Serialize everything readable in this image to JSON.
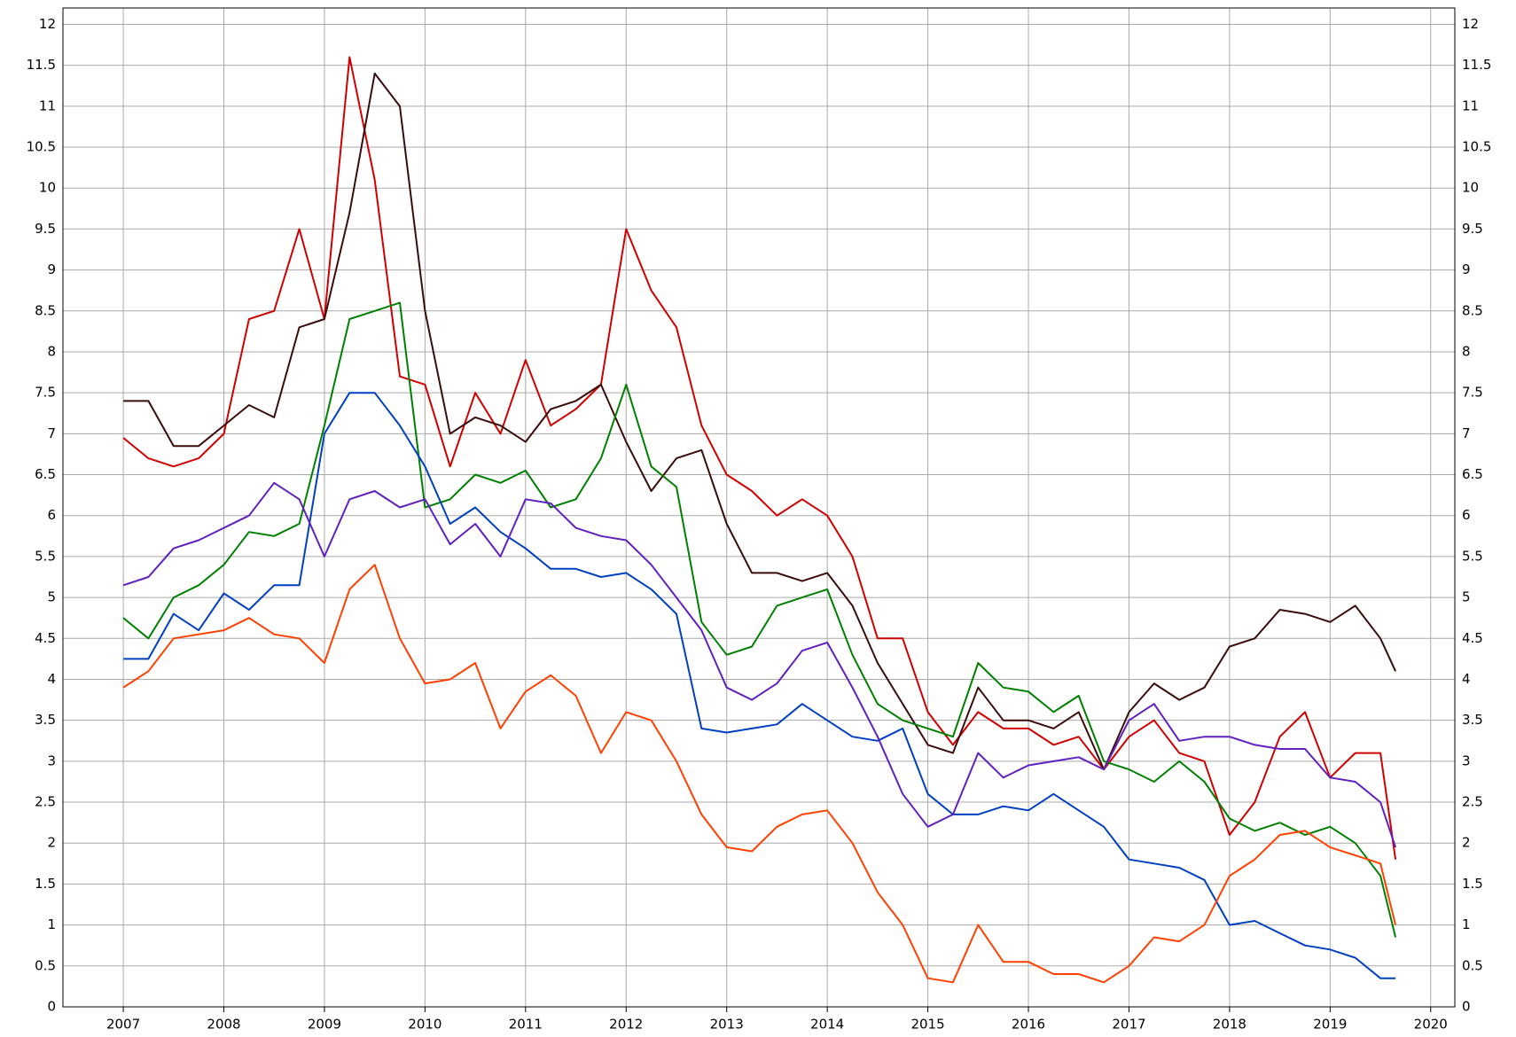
{
  "chart_data": {
    "type": "line",
    "x": [
      2007,
      2007.25,
      2007.5,
      2007.75,
      2008,
      2008.25,
      2008.5,
      2008.75,
      2009,
      2009.25,
      2009.5,
      2009.75,
      2010,
      2010.25,
      2010.5,
      2010.75,
      2011,
      2011.25,
      2011.5,
      2011.75,
      2012,
      2012.25,
      2012.5,
      2012.75,
      2013,
      2013.25,
      2013.5,
      2013.75,
      2014,
      2014.25,
      2014.5,
      2014.75,
      2015,
      2015.25,
      2015.5,
      2015.75,
      2016,
      2016.25,
      2016.5,
      2016.75,
      2017,
      2017.25,
      2017.5,
      2017.75,
      2018,
      2018.25,
      2018.5,
      2018.75,
      2019,
      2019.25,
      2019.5,
      2019.65
    ],
    "series": [
      {
        "color": "#d00000",
        "values": [
          6.95,
          6.7,
          6.6,
          6.7,
          7.0,
          8.4,
          8.5,
          9.5,
          8.4,
          11.6,
          10.1,
          7.7,
          7.6,
          6.6,
          7.5,
          7.0,
          7.9,
          7.1,
          7.3,
          7.6,
          9.5,
          8.75,
          8.3,
          7.1,
          6.5,
          6.3,
          6.0,
          6.2,
          6.0,
          5.5,
          4.5,
          4.5,
          3.6,
          3.2,
          3.6,
          3.4,
          3.4,
          3.2,
          3.3,
          2.9,
          3.3,
          3.5,
          3.1,
          3.0,
          2.1,
          2.5,
          3.3,
          3.6,
          2.8,
          3.1,
          3.1,
          1.8
        ]
      },
      {
        "color": "#3a0c0c",
        "values": [
          7.4,
          7.4,
          6.85,
          6.85,
          7.1,
          7.35,
          7.2,
          8.3,
          8.4,
          9.7,
          11.4,
          11.0,
          8.5,
          7.0,
          7.2,
          7.1,
          6.9,
          7.3,
          7.4,
          7.6,
          6.9,
          6.3,
          6.7,
          6.8,
          5.9,
          5.3,
          5.3,
          5.2,
          5.3,
          4.9,
          4.2,
          3.7,
          3.2,
          3.1,
          3.9,
          3.5,
          3.5,
          3.4,
          3.6,
          2.9,
          3.6,
          3.95,
          3.75,
          3.9,
          4.4,
          4.5,
          4.85,
          4.8,
          4.7,
          4.9,
          4.5,
          4.1
        ]
      },
      {
        "color": "#008000",
        "values": [
          4.75,
          4.5,
          5.0,
          5.15,
          5.4,
          5.8,
          5.75,
          5.9,
          7.1,
          8.4,
          8.5,
          8.6,
          6.1,
          6.2,
          6.5,
          6.4,
          6.55,
          6.1,
          6.2,
          6.7,
          7.6,
          6.6,
          6.35,
          4.7,
          4.3,
          4.4,
          4.9,
          5.0,
          5.1,
          4.3,
          3.7,
          3.5,
          3.4,
          3.3,
          4.2,
          3.9,
          3.85,
          3.6,
          3.8,
          3.0,
          2.9,
          2.75,
          3.0,
          2.75,
          2.3,
          2.15,
          2.25,
          2.1,
          2.2,
          2.0,
          1.6,
          0.85
        ]
      },
      {
        "color": "#0040c0",
        "values": [
          4.25,
          4.25,
          4.8,
          4.6,
          5.05,
          4.85,
          5.15,
          5.15,
          7.0,
          7.5,
          7.5,
          7.1,
          6.6,
          5.9,
          6.1,
          5.8,
          5.6,
          5.35,
          5.35,
          5.25,
          5.3,
          5.1,
          4.8,
          3.4,
          3.35,
          3.4,
          3.45,
          3.7,
          3.5,
          3.3,
          3.25,
          3.4,
          2.6,
          2.35,
          2.35,
          2.45,
          2.4,
          2.6,
          2.4,
          2.2,
          1.8,
          1.75,
          1.7,
          1.55,
          1.0,
          1.05,
          0.9,
          0.75,
          0.7,
          0.6,
          0.35,
          0.35
        ]
      },
      {
        "color": "#6020c0",
        "values": [
          5.15,
          5.25,
          5.6,
          5.7,
          5.85,
          6.0,
          6.4,
          6.2,
          5.5,
          6.2,
          6.3,
          6.1,
          6.2,
          5.65,
          5.9,
          5.5,
          6.2,
          6.15,
          5.85,
          5.75,
          5.7,
          5.4,
          5.0,
          4.6,
          3.9,
          3.75,
          3.95,
          4.35,
          4.45,
          3.9,
          3.3,
          2.6,
          2.2,
          2.35,
          3.1,
          2.8,
          2.95,
          3.0,
          3.05,
          2.9,
          3.5,
          3.7,
          3.25,
          3.3,
          3.3,
          3.2,
          3.15,
          3.15,
          2.8,
          2.75,
          2.5,
          1.95
        ]
      },
      {
        "color": "#ff4000",
        "values": [
          3.9,
          4.1,
          4.5,
          4.55,
          4.6,
          4.75,
          4.55,
          4.5,
          4.2,
          5.1,
          5.4,
          4.5,
          3.95,
          4.0,
          4.2,
          3.4,
          3.85,
          4.05,
          3.8,
          3.1,
          3.6,
          3.5,
          3.0,
          2.35,
          1.95,
          1.9,
          2.2,
          2.35,
          2.4,
          2.0,
          1.4,
          1.0,
          0.35,
          0.3,
          1.0,
          0.55,
          0.55,
          0.4,
          0.4,
          0.3,
          0.5,
          0.85,
          0.8,
          1.0,
          1.6,
          1.8,
          2.1,
          2.15,
          1.95,
          1.85,
          1.75,
          1.0
        ]
      }
    ],
    "xlim": [
      2006.4,
      2020.24
    ],
    "xticks": [
      2007,
      2008,
      2009,
      2010,
      2011,
      2012,
      2013,
      2014,
      2015,
      2016,
      2017,
      2018,
      2019,
      2020
    ],
    "ylim": [
      0,
      12.2
    ],
    "yticks": [
      0,
      0.5,
      1,
      1.5,
      2,
      2.5,
      3,
      3.5,
      4,
      4.5,
      5,
      5.5,
      6,
      6.5,
      7,
      7.5,
      8,
      8.5,
      9,
      9.5,
      10,
      10.5,
      11,
      11.5,
      12
    ],
    "grid": true
  }
}
